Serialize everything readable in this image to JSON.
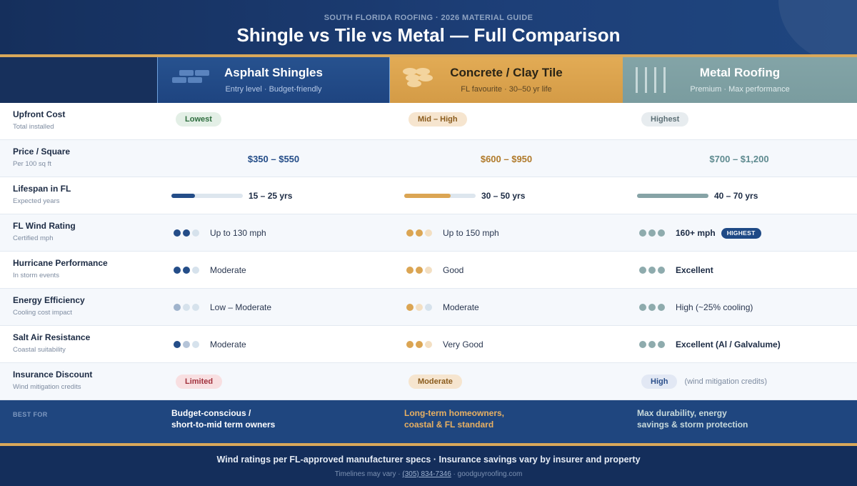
{
  "header": {
    "eyebrow": "SOUTH FLORIDA ROOFING · 2026 MATERIAL GUIDE",
    "title": "Shingle vs Tile vs Metal — Full Comparison"
  },
  "colors": {
    "navy": "#1d3f78",
    "gold": "#d9a85a",
    "asphalt": "#244d88",
    "tile": "#dba553",
    "metal": "#7fa0a3"
  },
  "columns": [
    {
      "name": "Asphalt Shingles",
      "sub": "Entry level · Budget-friendly",
      "icon": "shingle-icon"
    },
    {
      "name": "Concrete / Clay Tile",
      "sub": "FL favourite · 30–50 yr life",
      "icon": "tile-icon"
    },
    {
      "name": "Metal Roofing",
      "sub": "Premium · Max performance",
      "icon": "metal-panel-icon"
    }
  ],
  "rows": {
    "upfront": {
      "label": "Upfront Cost",
      "sub": "Total installed",
      "values": [
        "Lowest",
        "Mid – High",
        "Highest"
      ]
    },
    "price": {
      "label": "Price / Square",
      "sub": "Per 100 sq ft",
      "values": [
        "$350 – $550",
        "$600 – $950",
        "$700 – $1,200"
      ]
    },
    "lifespan": {
      "label": "Lifespan in FL",
      "sub": "Expected years",
      "values": [
        "15 – 25 yrs",
        "30 – 50 yrs",
        "40 – 70 yrs"
      ],
      "fill_fraction": [
        0.33,
        0.65,
        1.0
      ]
    },
    "wind": {
      "label": "FL Wind Rating",
      "sub": "Certified mph",
      "values": [
        "Up to 130 mph",
        "Up to 150 mph",
        "160+ mph"
      ],
      "dots_filled": [
        2,
        2,
        3
      ],
      "badge": "HIGHEST"
    },
    "hurricane": {
      "label": "Hurricane Performance",
      "sub": "In storm events",
      "values": [
        "Moderate",
        "Good",
        "Excellent"
      ],
      "dots_filled": [
        2,
        2,
        3
      ]
    },
    "energy": {
      "label": "Energy Efficiency",
      "sub": "Cooling cost impact",
      "values": [
        "Low – Moderate",
        "Moderate",
        "High (~25% cooling)"
      ],
      "dots_filled": [
        1,
        1,
        3
      ]
    },
    "salt": {
      "label": "Salt Air Resistance",
      "sub": "Coastal suitability",
      "values": [
        "Moderate",
        "Very Good",
        "Excellent (Al / Galvalume)"
      ],
      "dots_filled": [
        1.5,
        2,
        3
      ]
    },
    "insurance": {
      "label": "Insurance Discount",
      "sub": "Wind mitigation credits",
      "values": [
        "Limited",
        "Moderate",
        "High"
      ],
      "note": "(wind mitigation credits)"
    }
  },
  "best_for": {
    "label": "BEST FOR",
    "values": [
      "Budget-conscious /\nshort-to-mid term owners",
      "Long-term homeowners,\ncoastal & FL standard",
      "Max durability, energy\nsavings & storm protection"
    ]
  },
  "footer": {
    "main": "Wind ratings per FL-approved manufacturer specs · Insurance savings vary by insurer and property",
    "small_prefix": "Timelines may vary · ",
    "phone": "(305) 834-7346",
    "small_suffix": " · goodguyroofing.com"
  }
}
